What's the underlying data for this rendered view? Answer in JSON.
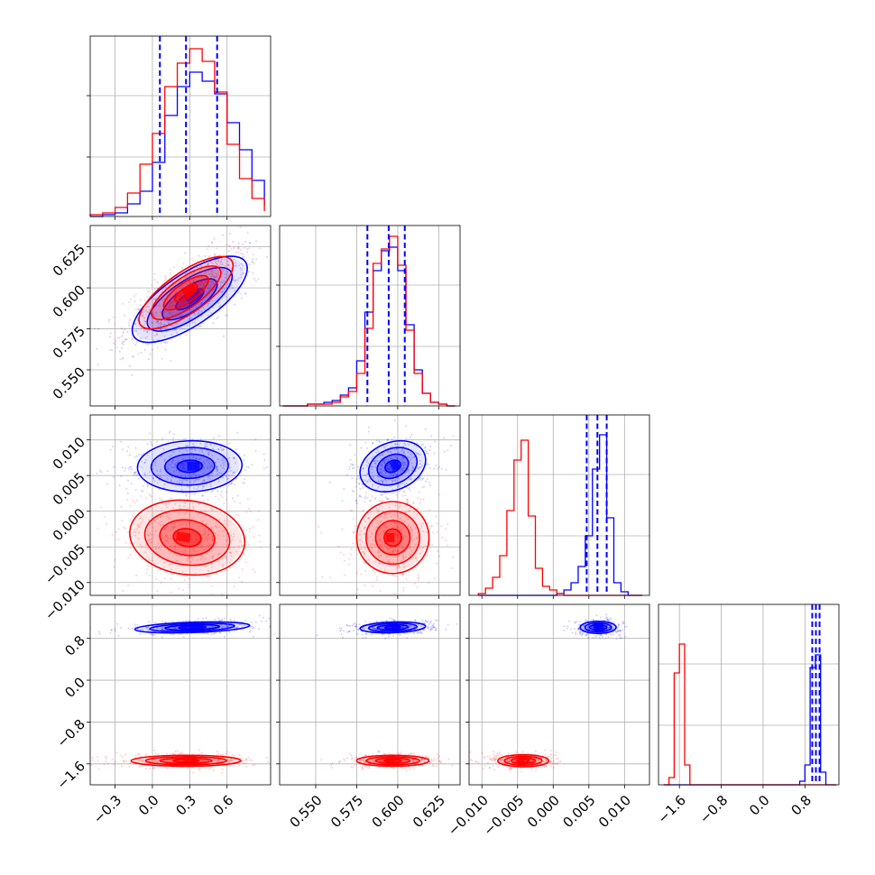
{
  "chart_data": {
    "type": "corner",
    "parameters": 4,
    "colors": {
      "series_a": "#0000ff",
      "series_b": "#ff0000"
    },
    "grid": true,
    "axes": [
      {
        "range": [
          -0.5,
          0.95
        ],
        "ticks": [
          -0.3,
          0.0,
          0.3,
          0.6
        ],
        "tick_labels": [
          "−0.3",
          "0.0",
          "0.3",
          "0.6"
        ]
      },
      {
        "range": [
          0.528,
          0.638
        ],
        "ticks": [
          0.55,
          0.575,
          0.6,
          0.625
        ],
        "tick_labels": [
          "0.550",
          "0.575",
          "0.600",
          "0.625"
        ]
      },
      {
        "range": [
          -0.0118,
          0.0135
        ],
        "ticks": [
          -0.01,
          -0.005,
          0.0,
          0.005,
          0.01
        ],
        "tick_labels": [
          "−0.010",
          "−0.005",
          "0.000",
          "0.005",
          "0.010"
        ]
      },
      {
        "range": [
          -2.0,
          1.45
        ],
        "ticks": [
          -1.6,
          -0.8,
          0.0,
          0.8
        ],
        "tick_labels": [
          "−1.6",
          "−0.8",
          "0.0",
          "0.8"
        ]
      }
    ],
    "marginals": [
      {
        "edges": [
          -0.5,
          -0.4,
          -0.3,
          -0.2,
          -0.1,
          0.0,
          0.1,
          0.2,
          0.3,
          0.4,
          0.5,
          0.6,
          0.7,
          0.8,
          0.9
        ],
        "blue": [
          0,
          0.01,
          0.02,
          0.07,
          0.14,
          0.3,
          0.56,
          0.72,
          0.8,
          0.75,
          0.68,
          0.52,
          0.37,
          0.2,
          0.06
        ],
        "red": [
          0.01,
          0.02,
          0.05,
          0.13,
          0.29,
          0.46,
          0.72,
          0.85,
          0.93,
          0.86,
          0.69,
          0.4,
          0.21,
          0.1,
          0.03
        ],
        "blue_quantiles": [
          0.06,
          0.27,
          0.52
        ]
      },
      {
        "edges": [
          0.53,
          0.535,
          0.54,
          0.545,
          0.55,
          0.555,
          0.56,
          0.565,
          0.57,
          0.575,
          0.58,
          0.585,
          0.59,
          0.595,
          0.6,
          0.605,
          0.61,
          0.615,
          0.62,
          0.625,
          0.63,
          0.635
        ],
        "blue": [
          0,
          0,
          0,
          0.01,
          0.01,
          0.02,
          0.03,
          0.06,
          0.1,
          0.25,
          0.52,
          0.75,
          0.86,
          0.88,
          0.75,
          0.45,
          0.2,
          0.07,
          0.02,
          0.01,
          0
        ],
        "red": [
          0,
          0,
          0,
          0.01,
          0.01,
          0.01,
          0.02,
          0.05,
          0.08,
          0.18,
          0.43,
          0.79,
          0.87,
          0.94,
          0.78,
          0.42,
          0.18,
          0.07,
          0.02,
          0.01,
          0
        ],
        "blue_quantiles": [
          0.5815,
          0.5945,
          0.6043
        ]
      },
      {
        "edges": [
          -0.0105,
          -0.0095,
          -0.0085,
          -0.0075,
          -0.0065,
          -0.0055,
          -0.0045,
          -0.0035,
          -0.0025,
          -0.0015,
          -0.0005,
          0.0005,
          0.0015,
          0.0025,
          0.0035,
          0.0045,
          0.0055,
          0.0065,
          0.0075,
          0.0085,
          0.0095,
          0.0105,
          0.0115,
          0.0125
        ],
        "blue": [
          0,
          0,
          0,
          0,
          0,
          0,
          0,
          0,
          0,
          0,
          0,
          0.01,
          0.03,
          0.07,
          0.16,
          0.33,
          0.7,
          0.89,
          0.43,
          0.07,
          0.02,
          0,
          0
        ],
        "red": [
          0.01,
          0.04,
          0.1,
          0.22,
          0.47,
          0.75,
          0.86,
          0.44,
          0.15,
          0.05,
          0.03,
          0.01,
          0,
          0,
          0,
          0,
          0,
          0,
          0,
          0,
          0,
          0,
          0
        ],
        "blue_quantiles": [
          0.0047,
          0.0062,
          0.0075
        ]
      },
      {
        "edges": [
          -1.9,
          -1.8,
          -1.7,
          -1.6,
          -1.5,
          -1.4,
          -1.3,
          -1.2,
          -1.1,
          -1.0,
          -0.9,
          -0.8,
          -0.7,
          -0.6,
          -0.5,
          -0.4,
          -0.3,
          -0.2,
          -0.1,
          0.0,
          0.1,
          0.2,
          0.3,
          0.4,
          0.5,
          0.6,
          0.7,
          0.8,
          0.9,
          1.0,
          1.1,
          1.2,
          1.3,
          1.4
        ],
        "blue": [
          0,
          0,
          0,
          0,
          0,
          0,
          0,
          0,
          0,
          0,
          0,
          0,
          0,
          0,
          0,
          0,
          0,
          0,
          0,
          0,
          0,
          0,
          0,
          0,
          0,
          0,
          0.02,
          0.11,
          0.65,
          0.72,
          0.07,
          0,
          0
        ],
        "red": [
          0,
          0.04,
          0.62,
          0.78,
          0.11,
          0,
          0,
          0,
          0,
          0,
          0,
          0,
          0,
          0,
          0,
          0,
          0,
          0,
          0,
          0,
          0,
          0,
          0,
          0,
          0,
          0,
          0,
          0,
          0,
          0,
          0,
          0,
          0
        ],
        "blue_quantiles": [
          0.94,
          1.01,
          1.08
        ]
      }
    ],
    "pairs": [
      {
        "row": 1,
        "col": 0,
        "blue": {
          "mean": [
            0.3,
            0.593
          ],
          "sd": [
            0.22,
            0.0125
          ],
          "rho": 0.72
        },
        "red": {
          "mean": [
            0.27,
            0.597
          ],
          "sd": [
            0.18,
            0.0105
          ],
          "rho": 0.75
        }
      },
      {
        "row": 2,
        "col": 0,
        "blue": {
          "mean": [
            0.3,
            0.0063
          ],
          "sd": [
            0.2,
            0.0017
          ],
          "rho": 0.05
        },
        "red": {
          "mean": [
            0.28,
            -0.0037
          ],
          "sd": [
            0.22,
            0.0025
          ],
          "rho": -0.12
        }
      },
      {
        "row": 2,
        "col": 1,
        "blue": {
          "mean": [
            0.597,
            0.0063
          ],
          "sd": [
            0.0095,
            0.0017
          ],
          "rho": 0.25
        },
        "red": {
          "mean": [
            0.597,
            -0.0037
          ],
          "sd": [
            0.0105,
            0.0024
          ],
          "rho": 0.0
        }
      },
      {
        "row": 3,
        "col": 0,
        "blue": {
          "mean": [
            0.32,
            1.01
          ],
          "sd": [
            0.22,
            0.05
          ],
          "rho": 0.35
        },
        "red": {
          "mean": [
            0.27,
            -1.54
          ],
          "sd": [
            0.21,
            0.05
          ],
          "rho": 0.02
        }
      },
      {
        "row": 3,
        "col": 1,
        "blue": {
          "mean": [
            0.597,
            1.01
          ],
          "sd": [
            0.0095,
            0.05
          ],
          "rho": 0.2
        },
        "red": {
          "mean": [
            0.597,
            -1.54
          ],
          "sd": [
            0.0105,
            0.05
          ],
          "rho": 0.0
        }
      },
      {
        "row": 3,
        "col": 2,
        "blue": {
          "mean": [
            0.0063,
            1.01
          ],
          "sd": [
            0.0012,
            0.055
          ],
          "rho": 0.0
        },
        "red": {
          "mean": [
            -0.0042,
            -1.54
          ],
          "sd": [
            0.0017,
            0.055
          ],
          "rho": 0.0
        }
      }
    ]
  }
}
